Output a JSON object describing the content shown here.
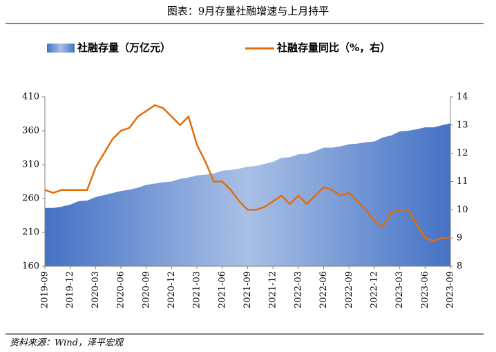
{
  "chart_data": {
    "type": "area-line",
    "title": "图表：9月存量社融增速与上月持平",
    "source": "资料来源：Wind，泽平宏观",
    "categories": [
      "2019-09",
      null,
      null,
      "2019-12",
      null,
      null,
      "2020-03",
      null,
      null,
      "2020-06",
      null,
      null,
      "2020-09",
      null,
      null,
      "2020-12",
      null,
      null,
      "2021-03",
      null,
      null,
      "2021-06",
      null,
      null,
      "2021-09",
      null,
      null,
      "2021-12",
      null,
      null,
      "2022-03",
      null,
      null,
      "2022-06",
      null,
      null,
      "2022-09",
      null,
      null,
      "2022-12",
      null,
      null,
      "2023-03",
      null,
      null,
      "2023-06",
      null,
      null,
      "2023-09"
    ],
    "series": [
      {
        "name": "社融存量（万亿元）",
        "color": "#4472c4",
        "values": [
          246,
          246,
          248,
          251,
          256,
          257,
          262,
          265,
          268,
          271,
          273,
          276,
          280,
          282,
          284,
          285,
          289,
          291,
          294,
          295,
          297,
          301,
          302,
          304,
          307,
          308,
          311,
          314,
          320,
          321,
          325,
          326,
          330,
          335,
          335,
          337,
          340,
          341,
          343,
          344,
          350,
          353,
          359,
          360,
          362,
          365,
          365,
          368,
          371
        ]
      },
      {
        "name": "社融存量同比（%，右）",
        "color": "#e36c09",
        "axis": "y2",
        "values": [
          10.7,
          10.6,
          10.7,
          10.7,
          10.7,
          10.7,
          11.5,
          12.0,
          12.5,
          12.8,
          12.9,
          13.3,
          13.5,
          13.7,
          13.6,
          13.3,
          13.0,
          13.3,
          12.3,
          11.7,
          11.0,
          11.0,
          10.7,
          10.3,
          10.0,
          10.0,
          10.1,
          10.3,
          10.5,
          10.2,
          10.5,
          10.2,
          10.5,
          10.8,
          10.7,
          10.5,
          10.6,
          10.3,
          10.0,
          9.6,
          9.4,
          9.9,
          10.0,
          10.0,
          9.5,
          9.0,
          8.9,
          9.0,
          9.0
        ]
      }
    ],
    "ylim": [
      160,
      410
    ],
    "yticks": [
      160,
      210,
      260,
      310,
      360,
      410
    ],
    "y2lim": [
      8,
      14
    ],
    "y2ticks": [
      8,
      9,
      10,
      11,
      12,
      13,
      14
    ],
    "grid": false
  }
}
